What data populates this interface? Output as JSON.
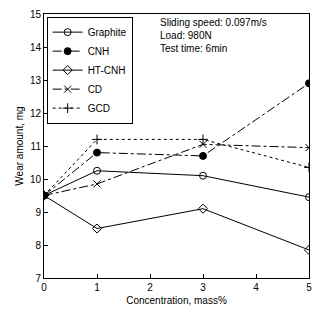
{
  "chart_data": {
    "type": "line",
    "x_label": "Concentration, mass%",
    "y_label": "Wear amount, mg",
    "annotations": [
      "Sliding speed: 0.097m/s",
      "Load: 980N",
      "Test time: 6min"
    ],
    "x": [
      0,
      1,
      3,
      5
    ],
    "series": [
      {
        "name": "Graphite",
        "color": "#000000",
        "marker": "circle-open",
        "line_style": "solid",
        "values": [
          9.5,
          10.25,
          10.1,
          9.45
        ]
      },
      {
        "name": "CNH",
        "color": "#000000",
        "marker": "circle",
        "line_style": "dashdot",
        "values": [
          9.5,
          10.8,
          10.7,
          12.9
        ]
      },
      {
        "name": "HT-CNH",
        "color": "#000000",
        "marker": "diamond-open",
        "line_style": "solid",
        "values": [
          9.5,
          8.5,
          9.1,
          7.85
        ]
      },
      {
        "name": "CD",
        "color": "#000000",
        "marker": "x-thin-open",
        "line_style": "dashdot",
        "values": [
          9.5,
          9.85,
          11.05,
          10.95
        ]
      },
      {
        "name": "GCD",
        "color": "#000000",
        "marker": "cross-thin-open",
        "line_style": "dot",
        "values": [
          9.5,
          11.2,
          11.2,
          10.35
        ]
      }
    ],
    "xlim": [
      0,
      5
    ],
    "xticks": [
      0,
      1,
      2,
      3,
      4,
      5
    ],
    "ylim": [
      7,
      15
    ],
    "yticks": [
      7,
      8,
      9,
      10,
      11,
      12,
      13,
      14,
      15
    ],
    "grid": false,
    "legend": "upper left"
  }
}
